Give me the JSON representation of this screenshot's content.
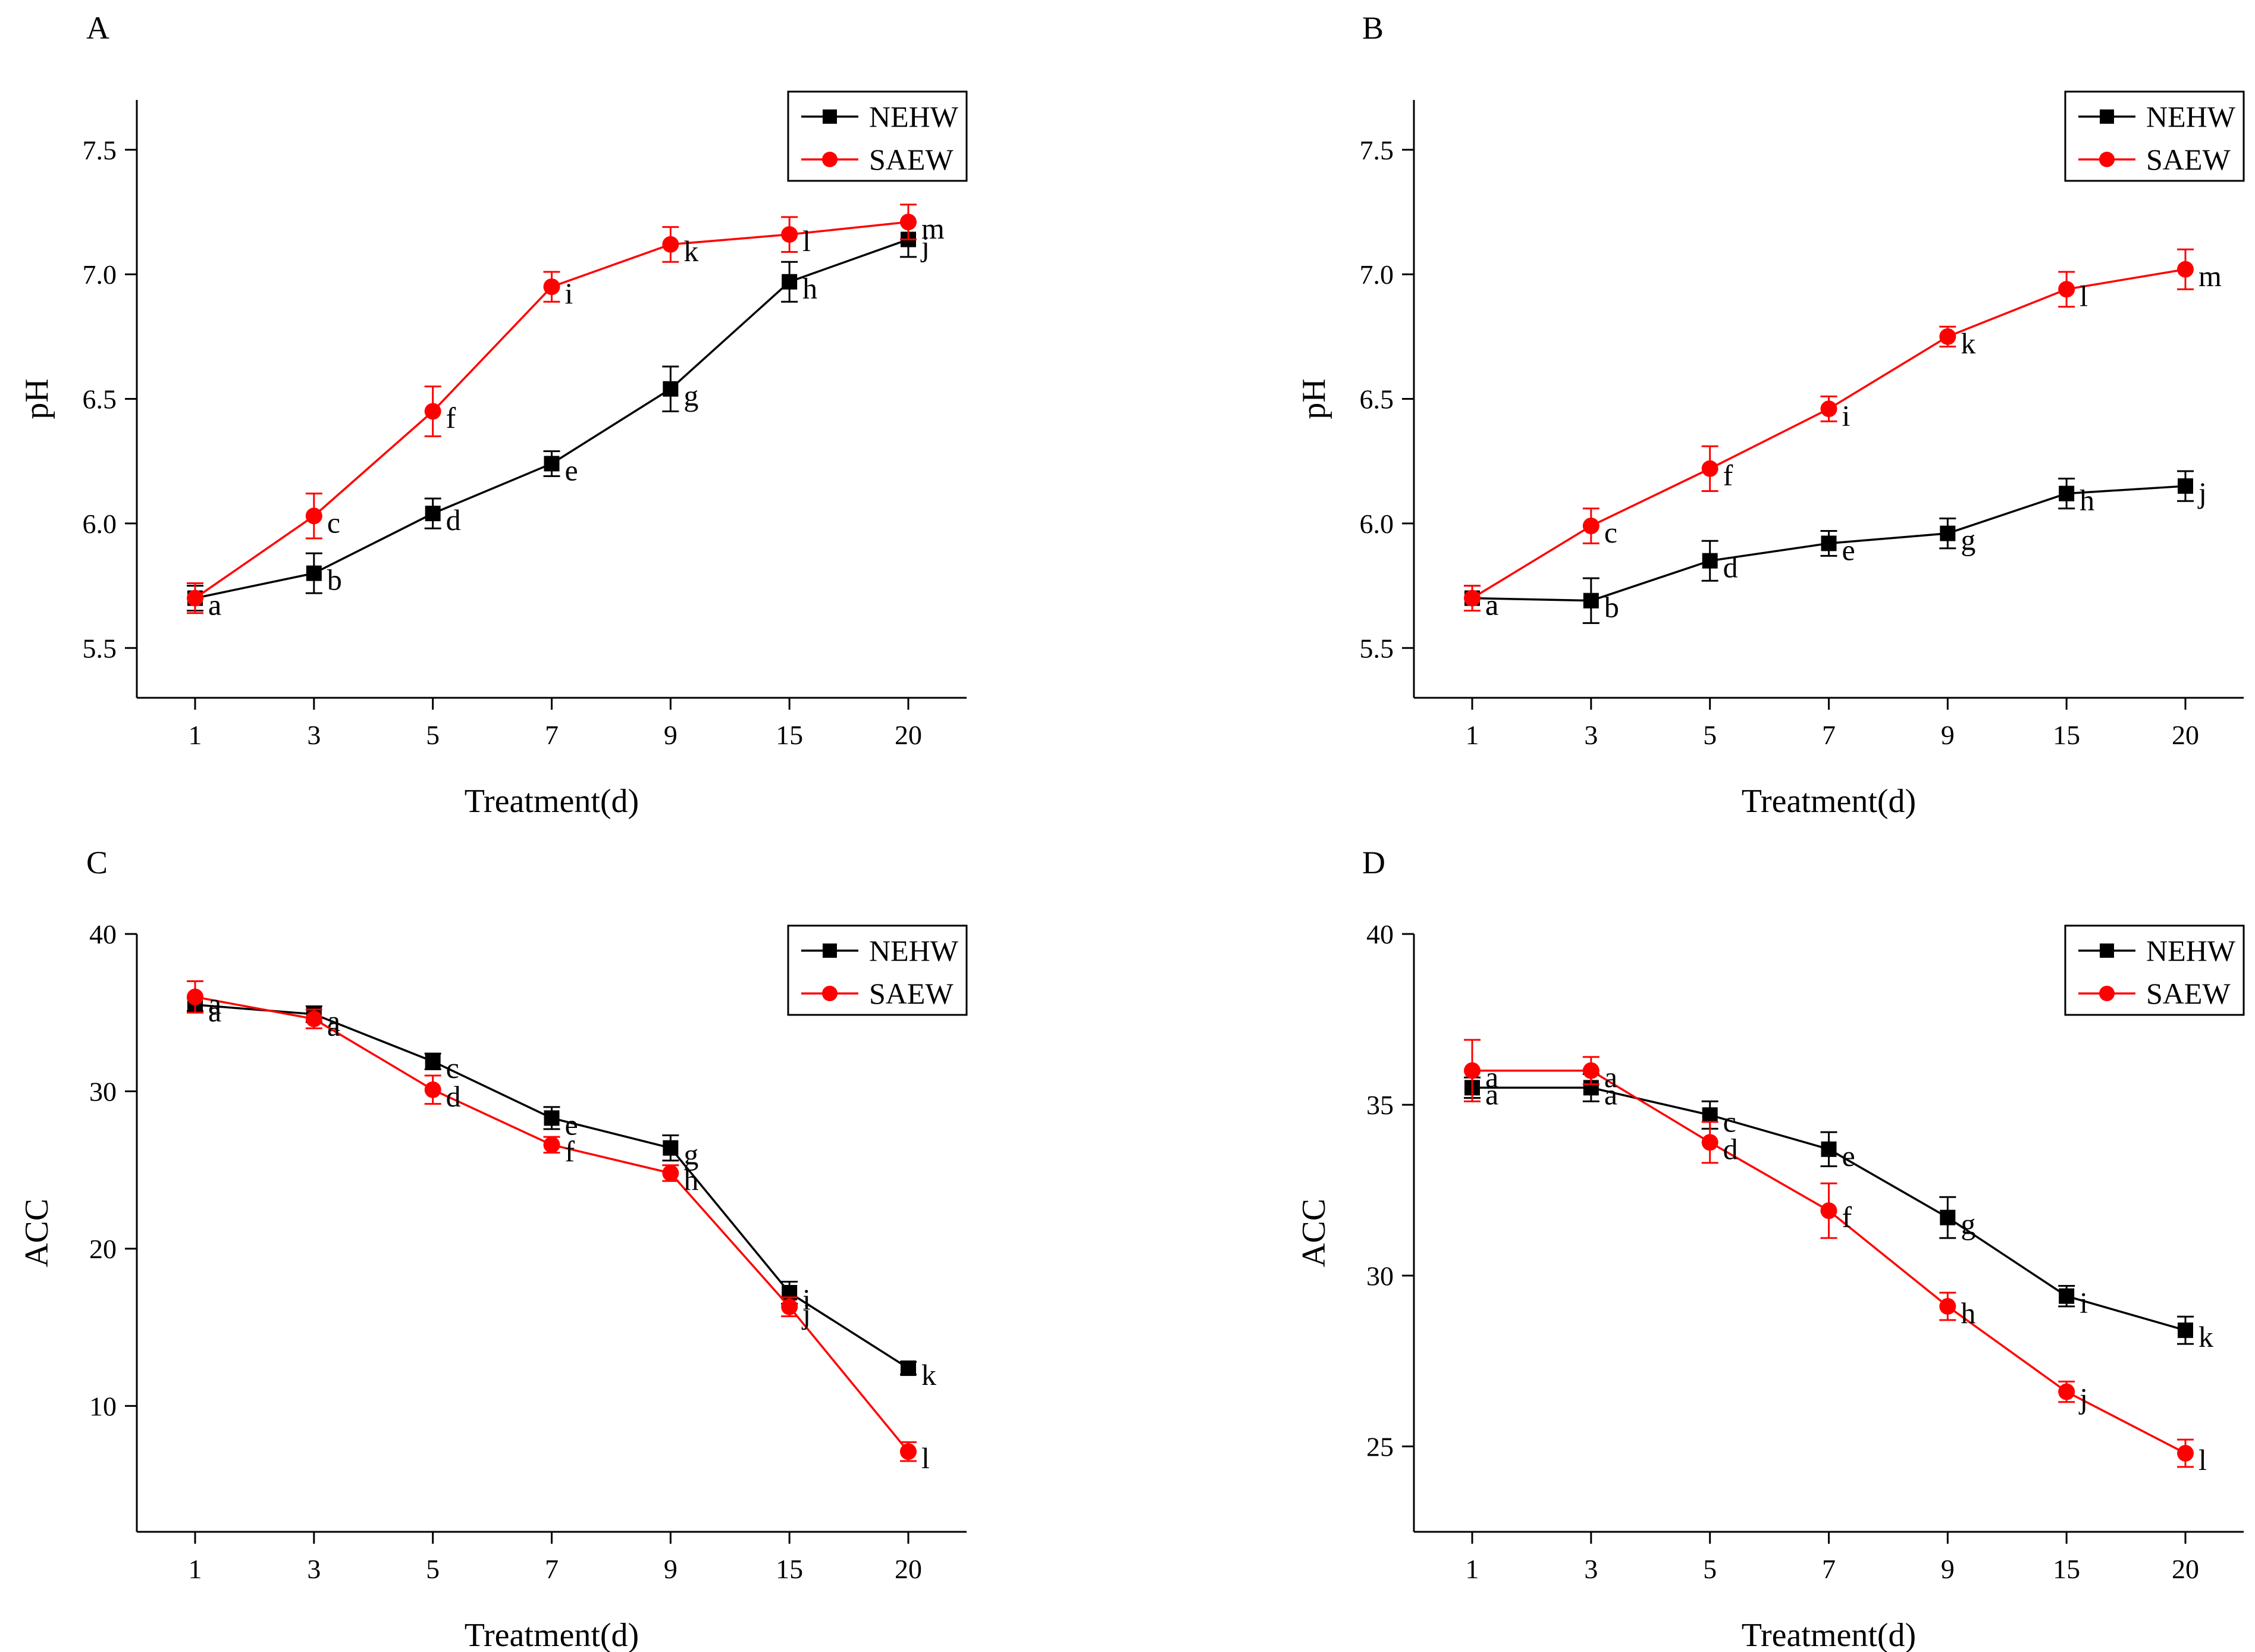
{
  "colors": {
    "NEHW": "#000000",
    "SAEW": "#ff0000"
  },
  "chart_data": [
    {
      "panel": "A",
      "type": "line",
      "xlabel": "Treatment(d)",
      "ylabel": "pH",
      "categories": [
        "1",
        "3",
        "5",
        "7",
        "9",
        "15",
        "20"
      ],
      "ylim": [
        5.3,
        7.7
      ],
      "yticks": [
        5.5,
        6.0,
        6.5,
        7.0,
        7.5
      ],
      "ytick_labels": [
        "5.5",
        "6.0",
        "6.5",
        "7.0",
        "7.5"
      ],
      "legend_position": "top-right",
      "series": [
        {
          "name": "NEHW",
          "marker": "square",
          "values": [
            5.7,
            5.8,
            6.04,
            6.24,
            6.54,
            6.97,
            7.14
          ],
          "errors": [
            0.05,
            0.08,
            0.06,
            0.05,
            0.09,
            0.08,
            0.07
          ],
          "labels": [
            "a",
            "b",
            "d",
            "e",
            "g",
            "h",
            "j"
          ]
        },
        {
          "name": "SAEW",
          "marker": "circle",
          "values": [
            5.7,
            6.03,
            6.45,
            6.95,
            7.12,
            7.16,
            7.21
          ],
          "errors": [
            0.06,
            0.09,
            0.1,
            0.06,
            0.07,
            0.07,
            0.07
          ],
          "labels": [
            "a",
            "c",
            "f",
            "i",
            "k",
            "l",
            "m"
          ]
        }
      ]
    },
    {
      "panel": "B",
      "type": "line",
      "xlabel": "Treatment(d)",
      "ylabel": "pH",
      "categories": [
        "1",
        "3",
        "5",
        "7",
        "9",
        "15",
        "20"
      ],
      "ylim": [
        5.3,
        7.7
      ],
      "yticks": [
        5.5,
        6.0,
        6.5,
        7.0,
        7.5
      ],
      "ytick_labels": [
        "5.5",
        "6.0",
        "6.5",
        "7.0",
        "7.5"
      ],
      "legend_position": "top-right",
      "series": [
        {
          "name": "NEHW",
          "marker": "square",
          "values": [
            5.7,
            5.69,
            5.85,
            5.92,
            5.96,
            6.12,
            6.15
          ],
          "errors": [
            0.05,
            0.09,
            0.08,
            0.05,
            0.06,
            0.06,
            0.06
          ],
          "labels": [
            "a",
            "b",
            "d",
            "e",
            "g",
            "h",
            "j"
          ]
        },
        {
          "name": "SAEW",
          "marker": "circle",
          "values": [
            5.7,
            5.99,
            6.22,
            6.46,
            6.75,
            6.94,
            7.02
          ],
          "errors": [
            0.05,
            0.07,
            0.09,
            0.05,
            0.04,
            0.07,
            0.08
          ],
          "labels": [
            "a",
            "c",
            "f",
            "i",
            "k",
            "l",
            "m"
          ]
        }
      ]
    },
    {
      "panel": "C",
      "type": "line",
      "xlabel": "Treatment(d)",
      "ylabel": "ACC",
      "categories": [
        "1",
        "3",
        "5",
        "7",
        "9",
        "15",
        "20"
      ],
      "ylim": [
        2,
        40
      ],
      "yticks": [
        10,
        20,
        30,
        40
      ],
      "ytick_labels": [
        "10",
        "20",
        "30",
        "40"
      ],
      "legend_position": "top-right",
      "series": [
        {
          "name": "NEHW",
          "marker": "square",
          "values": [
            35.5,
            34.9,
            31.9,
            28.3,
            26.4,
            17.2,
            12.4
          ],
          "errors": [
            0.4,
            0.5,
            0.5,
            0.7,
            0.8,
            0.7,
            0.4
          ],
          "labels": [
            "a",
            "a",
            "c",
            "e",
            "g",
            "i",
            "k"
          ]
        },
        {
          "name": "SAEW",
          "marker": "circle",
          "values": [
            36.0,
            34.6,
            30.1,
            26.6,
            24.8,
            16.3,
            7.1
          ],
          "errors": [
            1.0,
            0.6,
            0.9,
            0.5,
            0.5,
            0.6,
            0.6
          ],
          "labels": [
            "a",
            "a",
            "d",
            "f",
            "h",
            "j",
            "l"
          ]
        }
      ]
    },
    {
      "panel": "D",
      "type": "line",
      "xlabel": "Treatment(d)",
      "ylabel": "ACC",
      "categories": [
        "1",
        "3",
        "5",
        "7",
        "9",
        "15",
        "20"
      ],
      "ylim": [
        22.5,
        40
      ],
      "yticks": [
        25,
        30,
        35,
        40
      ],
      "ytick_labels": [
        "25",
        "30",
        "35",
        "40"
      ],
      "legend_position": "top-right",
      "series": [
        {
          "name": "NEHW",
          "marker": "square",
          "values": [
            35.5,
            35.5,
            34.7,
            33.7,
            31.7,
            29.4,
            28.4
          ],
          "errors": [
            0.3,
            0.4,
            0.4,
            0.5,
            0.6,
            0.3,
            0.4
          ],
          "labels": [
            "a",
            "a",
            "c",
            "e",
            "g",
            "i",
            "k"
          ]
        },
        {
          "name": "SAEW",
          "marker": "circle",
          "values": [
            36.0,
            36.0,
            33.9,
            31.9,
            29.1,
            26.6,
            24.8
          ],
          "errors": [
            0.9,
            0.4,
            0.6,
            0.8,
            0.4,
            0.3,
            0.4
          ],
          "labels": [
            "a",
            "a",
            "d",
            "f",
            "h",
            "j",
            "l"
          ]
        }
      ]
    }
  ]
}
